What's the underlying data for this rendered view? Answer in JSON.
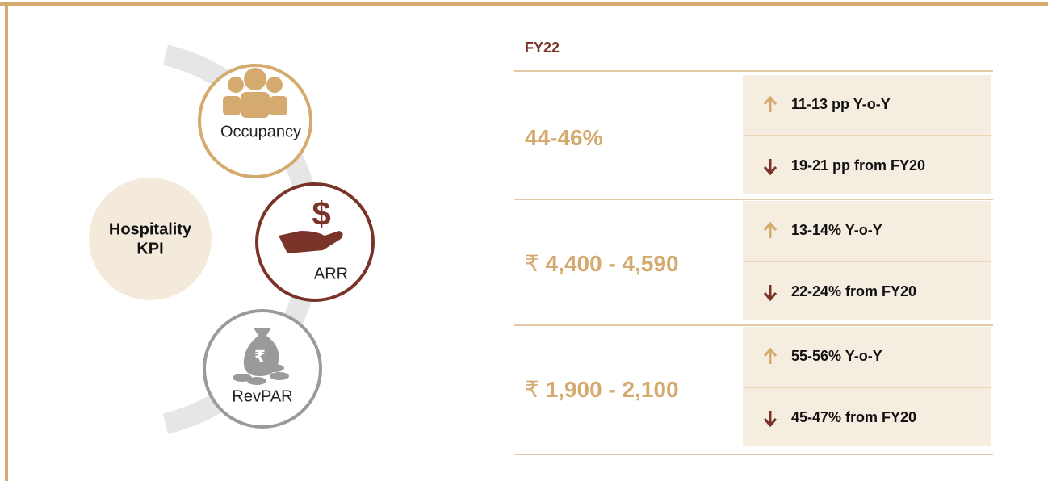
{
  "kpi_title": [
    "Hospitality",
    "KPI"
  ],
  "header": "FY22",
  "kpis": [
    {
      "name": "Occupancy",
      "value": "44-46%",
      "up": "11-13 pp Y-o-Y",
      "down": "19-21 pp from FY20"
    },
    {
      "name": "ARR",
      "currency": "₹",
      "value": "4,400 - 4,590",
      "up": "13-14% Y-o-Y",
      "down": "22-24% from FY20"
    },
    {
      "name": "RevPAR",
      "currency": "₹",
      "value": "1,900 - 2,100",
      "up": "55-56% Y-o-Y",
      "down": "45-47% from FY20"
    }
  ]
}
